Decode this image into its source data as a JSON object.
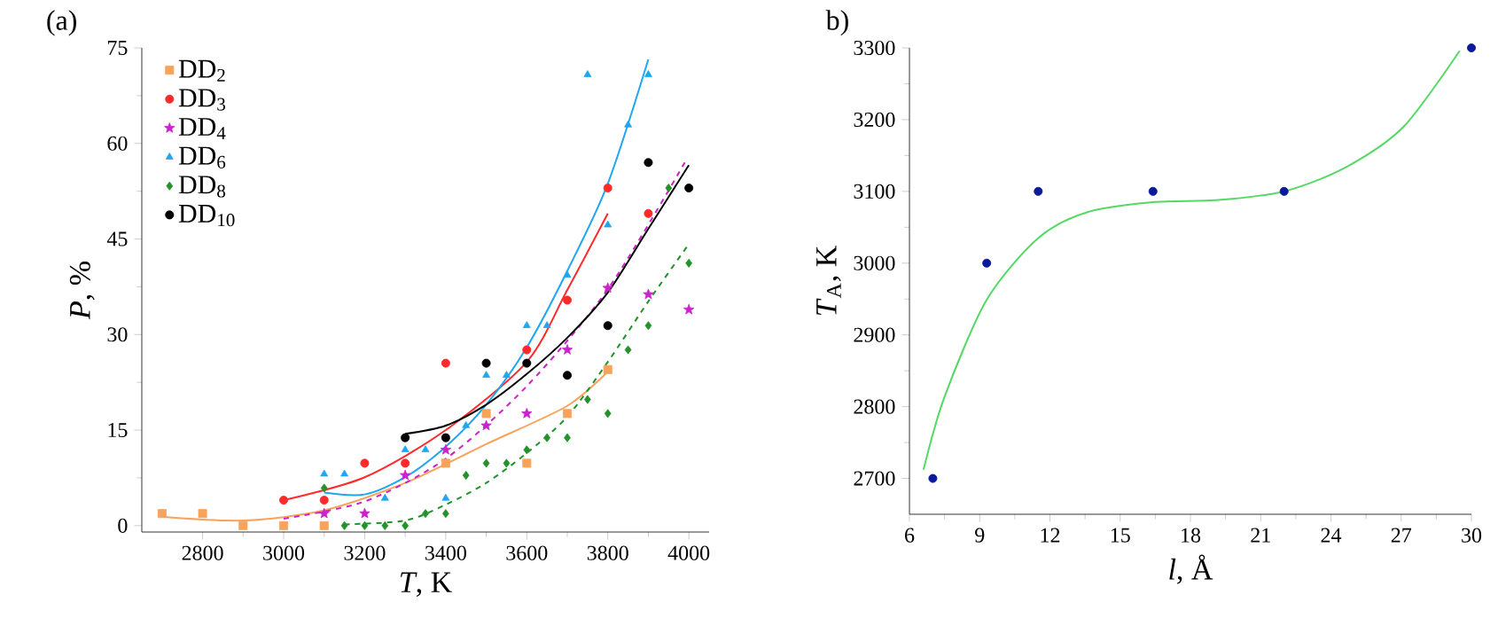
{
  "chart_data": [
    {
      "type": "scatter",
      "title": "(a)",
      "xlabel": "*T*, K",
      "ylabel": "*P*, %",
      "xlim": [
        2650,
        4050
      ],
      "ylim": [
        -1,
        75
      ],
      "xticks": [
        2800,
        3000,
        3200,
        3400,
        3600,
        3800,
        4000
      ],
      "yticks": [
        0,
        15,
        30,
        45,
        60,
        75
      ],
      "legend": "top left",
      "series": [
        {
          "name": "DD$_{2}$",
          "color": "#f7a35c",
          "marker": "square",
          "x": [
            2700,
            2800,
            2900,
            3000,
            3100,
            3400,
            3500,
            3600,
            3700,
            3800
          ],
          "values": [
            1.9,
            1.9,
            0,
            0,
            0,
            9.8,
            17.6,
            9.8,
            17.6,
            24.5
          ]
        },
        {
          "name": "DD$_{3}$",
          "color": "#ff2a2a",
          "marker": "circle",
          "x": [
            3000,
            3100,
            3200,
            3300,
            3400,
            3600,
            3700,
            3800,
            3900
          ],
          "values": [
            4.0,
            4.0,
            9.8,
            9.8,
            25.5,
            27.6,
            35.4,
            53,
            49
          ]
        },
        {
          "name": "DD$_{4}$",
          "color": "#cc22cc",
          "marker": "star",
          "x": [
            3100,
            3200,
            3300,
            3400,
            3500,
            3600,
            3700,
            3800,
            3900,
            4000
          ],
          "values": [
            1.9,
            1.9,
            7.9,
            11.9,
            15.7,
            17.6,
            27.6,
            37.3,
            36.3,
            33.9
          ]
        },
        {
          "name": "DD$_{6}$",
          "color": "#1ea7f0",
          "marker": "triangle",
          "x": [
            3100,
            3150,
            3250,
            3300,
            3350,
            3400,
            3450,
            3500,
            3550,
            3600,
            3650,
            3700,
            3750,
            3800,
            3850,
            3900
          ],
          "values": [
            8.1,
            8.1,
            4.3,
            11.9,
            11.9,
            4.3,
            15.7,
            23.6,
            23.6,
            31.4,
            31.4,
            39.3,
            70.8,
            47.2,
            62.9,
            70.8
          ]
        },
        {
          "name": "DD$_{8}$",
          "color": "#22922a",
          "marker": "diamond",
          "x": [
            3100,
            3150,
            3200,
            3250,
            3300,
            3350,
            3400,
            3450,
            3500,
            3550,
            3600,
            3650,
            3700,
            3750,
            3800,
            3850,
            3900,
            3950,
            4000
          ],
          "values": [
            5.9,
            0,
            0,
            0,
            0,
            1.9,
            1.9,
            7.9,
            9.8,
            9.8,
            11.9,
            13.8,
            13.8,
            19.8,
            17.6,
            27.6,
            31.4,
            53,
            41.2
          ]
        },
        {
          "name": "DD$_{10}$",
          "color": "#000000",
          "marker": "circle",
          "x": [
            3300,
            3400,
            3500,
            3600,
            3700,
            3800,
            3900,
            4000
          ],
          "values": [
            13.8,
            13.8,
            25.5,
            25.5,
            23.6,
            31.4,
            57,
            53
          ]
        },
        {
          "type": "line",
          "color": "#f7a35c",
          "line_style": "solid",
          "x": [
            2700,
            2900,
            3100,
            3300,
            3500,
            3700,
            3800
          ],
          "values": [
            1.4,
            0.8,
            2.4,
            6.7,
            12.8,
            18.8,
            24.2
          ]
        },
        {
          "type": "line",
          "color": "#ff2a2a",
          "line_style": "solid",
          "x": [
            3000,
            3200,
            3400,
            3600,
            3700,
            3800
          ],
          "values": [
            4.0,
            7.6,
            15,
            25.7,
            37,
            49
          ]
        },
        {
          "type": "line",
          "color": "#cc22cc",
          "line_style": "dashed",
          "x": [
            3000,
            3200,
            3400,
            3600,
            3800,
            3990
          ],
          "values": [
            1.1,
            3.8,
            10.5,
            21.9,
            37.1,
            57
          ]
        },
        {
          "type": "line",
          "color": "#1ea7f0",
          "line_style": "solid",
          "x": [
            3100,
            3200,
            3300,
            3400,
            3500,
            3600,
            3700,
            3800,
            3900
          ],
          "values": [
            5.2,
            4.9,
            7.6,
            12.4,
            19,
            28,
            40,
            53.7,
            73.2
          ]
        },
        {
          "type": "line",
          "color": "#22922a",
          "line_style": "dashed",
          "x": [
            3150,
            3300,
            3400,
            3500,
            3600,
            3700,
            3800,
            3900,
            4000
          ],
          "values": [
            0.2,
            0.8,
            3.3,
            6.7,
            11.4,
            17.1,
            25.7,
            35.2,
            44.2
          ]
        },
        {
          "type": "line",
          "color": "#000000",
          "line_style": "solid",
          "x": [
            3300,
            3400,
            3500,
            3600,
            3700,
            3800,
            3900,
            4000
          ],
          "values": [
            14.4,
            15.7,
            19,
            23.8,
            29.5,
            36.6,
            46.6,
            56.6
          ]
        }
      ]
    },
    {
      "type": "scatter",
      "title": "b)",
      "xlabel": "*l*, Å",
      "ylabel": "*T*$_{A}$, K",
      "xlim": [
        6,
        30
      ],
      "ylim": [
        2650,
        3300
      ],
      "xticks": [
        6,
        9,
        12,
        15,
        18,
        21,
        24,
        27,
        30
      ],
      "yticks": [
        2700,
        2800,
        2900,
        3000,
        3100,
        3200,
        3300
      ],
      "series": [
        {
          "color": "#0a1a9a",
          "marker": "circle",
          "x": [
            7.0,
            9.3,
            11.5,
            16.4,
            22.0,
            30
          ],
          "values": [
            2700,
            3000,
            3100,
            3100,
            3100,
            3300
          ]
        },
        {
          "type": "line",
          "color": "#55d865",
          "line_style": "solid",
          "x": [
            6.6,
            7.5,
            9.3,
            11.5,
            13.6,
            16.4,
            19.2,
            22.0,
            24.6,
            27.1,
            29.5
          ],
          "values": [
            2712,
            2814,
            2949,
            3035,
            3071,
            3085,
            3088,
            3100,
            3133,
            3190,
            3296
          ]
        }
      ]
    }
  ]
}
